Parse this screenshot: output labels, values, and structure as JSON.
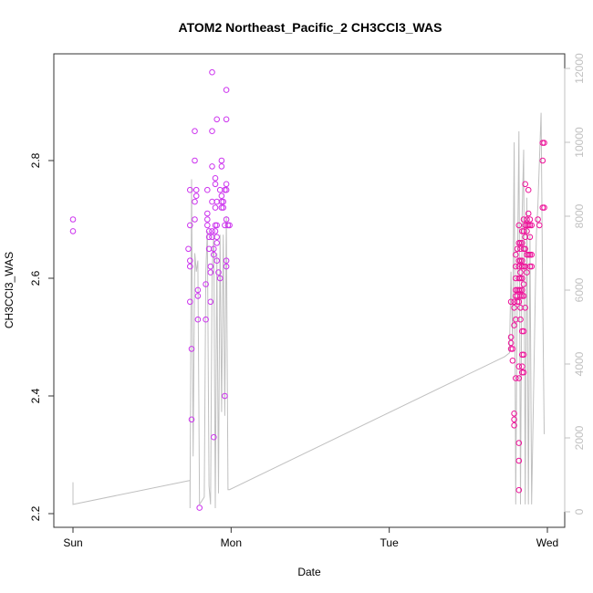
{
  "chart_data": {
    "type": "scatter",
    "title": "ATOM2 Northeast_Pacific_2 CH3CCl3_WAS",
    "xlabel": "Date",
    "ylabel": "CH3CCl3_WAS",
    "xlim": [
      0,
      3.0
    ],
    "ylim": [
      2.2,
      2.96
    ],
    "y2lim": [
      0,
      12000
    ],
    "x_ticks": [
      {
        "value": 0,
        "label": "Sun"
      },
      {
        "value": 1,
        "label": "Mon"
      },
      {
        "value": 2,
        "label": "Tue"
      },
      {
        "value": 3,
        "label": "Wed"
      }
    ],
    "y_ticks": [
      {
        "value": 2.2,
        "label": "2.2"
      },
      {
        "value": 2.4,
        "label": "2.4"
      },
      {
        "value": 2.6,
        "label": "2.6"
      },
      {
        "value": 2.8,
        "label": "2.8"
      }
    ],
    "y2_ticks": [
      {
        "value": 0,
        "label": "0"
      },
      {
        "value": 2000,
        "label": "2000"
      },
      {
        "value": 4000,
        "label": "4000"
      },
      {
        "value": 6000,
        "label": "6000"
      },
      {
        "value": 8000,
        "label": "8000"
      },
      {
        "value": 10000,
        "label": "10000"
      },
      {
        "value": 12000,
        "label": "12000"
      }
    ],
    "grid": false,
    "colors": {
      "points_early": "#cc33ee",
      "points_late": "#ee1199",
      "altitude_line": "#c0c0c0",
      "frame": "#333333"
    },
    "series": [
      {
        "marker": "open-circle",
        "points": [
          [
            0.0,
            2.7
          ],
          [
            0.0,
            2.68
          ],
          [
            0.74,
            2.75
          ],
          [
            0.74,
            2.69
          ],
          [
            0.73,
            2.65
          ],
          [
            0.74,
            2.63
          ],
          [
            0.74,
            2.62
          ],
          [
            0.74,
            2.56
          ],
          [
            0.75,
            2.48
          ],
          [
            0.75,
            2.36
          ],
          [
            0.77,
            2.85
          ],
          [
            0.77,
            2.8
          ],
          [
            0.78,
            2.75
          ],
          [
            0.78,
            2.74
          ],
          [
            0.77,
            2.73
          ],
          [
            0.77,
            2.7
          ],
          [
            0.79,
            2.58
          ],
          [
            0.79,
            2.57
          ],
          [
            0.79,
            2.53
          ],
          [
            0.8,
            2.21
          ],
          [
            0.84,
            2.53
          ],
          [
            0.84,
            2.59
          ],
          [
            0.85,
            2.75
          ],
          [
            0.85,
            2.71
          ],
          [
            0.85,
            2.7
          ],
          [
            0.85,
            2.69
          ],
          [
            0.86,
            2.68
          ],
          [
            0.86,
            2.67
          ],
          [
            0.86,
            2.65
          ],
          [
            0.87,
            2.62
          ],
          [
            0.87,
            2.61
          ],
          [
            0.87,
            2.56
          ],
          [
            0.88,
            2.95
          ],
          [
            0.88,
            2.85
          ],
          [
            0.88,
            2.79
          ],
          [
            0.88,
            2.73
          ],
          [
            0.88,
            2.68
          ],
          [
            0.88,
            2.67
          ],
          [
            0.89,
            2.64
          ],
          [
            0.89,
            2.65
          ],
          [
            0.89,
            2.33
          ],
          [
            0.9,
            2.77
          ],
          [
            0.9,
            2.76
          ],
          [
            0.9,
            2.72
          ],
          [
            0.9,
            2.69
          ],
          [
            0.9,
            2.68
          ],
          [
            0.91,
            2.87
          ],
          [
            0.91,
            2.73
          ],
          [
            0.91,
            2.69
          ],
          [
            0.91,
            2.67
          ],
          [
            0.91,
            2.66
          ],
          [
            0.91,
            2.63
          ],
          [
            0.92,
            2.61
          ],
          [
            0.93,
            2.75
          ],
          [
            0.93,
            2.6
          ],
          [
            0.94,
            2.8
          ],
          [
            0.94,
            2.79
          ],
          [
            0.94,
            2.74
          ],
          [
            0.94,
            2.73
          ],
          [
            0.94,
            2.72
          ],
          [
            0.95,
            2.73
          ],
          [
            0.95,
            2.72
          ],
          [
            0.96,
            2.75
          ],
          [
            0.96,
            2.69
          ],
          [
            0.96,
            2.4
          ],
          [
            0.97,
            2.92
          ],
          [
            0.97,
            2.87
          ],
          [
            0.97,
            2.76
          ],
          [
            0.97,
            2.75
          ],
          [
            0.97,
            2.7
          ],
          [
            0.97,
            2.63
          ],
          [
            0.97,
            2.62
          ],
          [
            0.98,
            2.69
          ],
          [
            0.99,
            2.69
          ],
          [
            2.77,
            2.56
          ],
          [
            2.77,
            2.5
          ],
          [
            2.77,
            2.49
          ],
          [
            2.77,
            2.48
          ],
          [
            2.78,
            2.48
          ],
          [
            2.78,
            2.46
          ],
          [
            2.79,
            2.37
          ],
          [
            2.79,
            2.36
          ],
          [
            2.79,
            2.35
          ],
          [
            2.79,
            2.55
          ],
          [
            2.79,
            2.56
          ],
          [
            2.79,
            2.52
          ],
          [
            2.8,
            2.43
          ],
          [
            2.8,
            2.64
          ],
          [
            2.8,
            2.62
          ],
          [
            2.8,
            2.6
          ],
          [
            2.8,
            2.58
          ],
          [
            2.8,
            2.57
          ],
          [
            2.8,
            2.53
          ],
          [
            2.81,
            2.65
          ],
          [
            2.81,
            2.58
          ],
          [
            2.81,
            2.57
          ],
          [
            2.81,
            2.56
          ],
          [
            2.82,
            2.69
          ],
          [
            2.82,
            2.66
          ],
          [
            2.82,
            2.63
          ],
          [
            2.82,
            2.62
          ],
          [
            2.82,
            2.6
          ],
          [
            2.82,
            2.58
          ],
          [
            2.82,
            2.56
          ],
          [
            2.82,
            2.45
          ],
          [
            2.82,
            2.43
          ],
          [
            2.82,
            2.32
          ],
          [
            2.82,
            2.29
          ],
          [
            2.82,
            2.24
          ],
          [
            2.83,
            2.66
          ],
          [
            2.83,
            2.65
          ],
          [
            2.83,
            2.63
          ],
          [
            2.83,
            2.61
          ],
          [
            2.83,
            2.6
          ],
          [
            2.83,
            2.58
          ],
          [
            2.83,
            2.57
          ],
          [
            2.83,
            2.55
          ],
          [
            2.83,
            2.53
          ],
          [
            2.84,
            2.68
          ],
          [
            2.84,
            2.66
          ],
          [
            2.84,
            2.63
          ],
          [
            2.84,
            2.62
          ],
          [
            2.84,
            2.6
          ],
          [
            2.84,
            2.58
          ],
          [
            2.84,
            2.57
          ],
          [
            2.84,
            2.51
          ],
          [
            2.84,
            2.47
          ],
          [
            2.84,
            2.45
          ],
          [
            2.84,
            2.44
          ],
          [
            2.85,
            2.7
          ],
          [
            2.85,
            2.68
          ],
          [
            2.85,
            2.65
          ],
          [
            2.85,
            2.62
          ],
          [
            2.85,
            2.59
          ],
          [
            2.85,
            2.57
          ],
          [
            2.85,
            2.51
          ],
          [
            2.85,
            2.47
          ],
          [
            2.85,
            2.44
          ],
          [
            2.86,
            2.76
          ],
          [
            2.86,
            2.69
          ],
          [
            2.86,
            2.67
          ],
          [
            2.86,
            2.65
          ],
          [
            2.86,
            2.62
          ],
          [
            2.86,
            2.55
          ],
          [
            2.87,
            2.7
          ],
          [
            2.87,
            2.69
          ],
          [
            2.87,
            2.68
          ],
          [
            2.87,
            2.64
          ],
          [
            2.87,
            2.61
          ],
          [
            2.88,
            2.75
          ],
          [
            2.88,
            2.71
          ],
          [
            2.88,
            2.69
          ],
          [
            2.88,
            2.64
          ],
          [
            2.89,
            2.7
          ],
          [
            2.89,
            2.69
          ],
          [
            2.89,
            2.67
          ],
          [
            2.89,
            2.64
          ],
          [
            2.89,
            2.62
          ],
          [
            2.9,
            2.69
          ],
          [
            2.9,
            2.64
          ],
          [
            2.9,
            2.62
          ],
          [
            2.94,
            2.7
          ],
          [
            2.95,
            2.69
          ],
          [
            2.97,
            2.83
          ],
          [
            2.97,
            2.8
          ],
          [
            2.97,
            2.72
          ],
          [
            2.98,
            2.83
          ],
          [
            2.98,
            2.72
          ]
        ]
      },
      {
        "marker": "line",
        "axis": "right",
        "points": [
          [
            0.0,
            800
          ],
          [
            0.0,
            200
          ],
          [
            0.74,
            850
          ],
          [
            0.74,
            250
          ],
          [
            0.74,
            100
          ],
          [
            0.75,
            9000
          ],
          [
            0.76,
            1500
          ],
          [
            0.77,
            7000
          ],
          [
            0.78,
            6500
          ],
          [
            0.79,
            6800
          ],
          [
            0.8,
            200
          ],
          [
            0.83,
            400
          ],
          [
            0.84,
            6500
          ],
          [
            0.85,
            7600
          ],
          [
            0.86,
            700
          ],
          [
            0.87,
            200
          ],
          [
            0.88,
            6500
          ],
          [
            0.89,
            7500
          ],
          [
            0.9,
            100
          ],
          [
            0.91,
            7000
          ],
          [
            0.92,
            500
          ],
          [
            0.93,
            7500
          ],
          [
            0.94,
            2700
          ],
          [
            0.95,
            7500
          ],
          [
            0.96,
            2600
          ],
          [
            0.97,
            8000
          ],
          [
            0.98,
            600
          ],
          [
            0.99,
            600
          ],
          [
            2.73,
            4200
          ],
          [
            2.76,
            4300
          ],
          [
            2.77,
            6500
          ],
          [
            2.78,
            4500
          ],
          [
            2.79,
            10000
          ],
          [
            2.8,
            200
          ],
          [
            2.81,
            6500
          ],
          [
            2.82,
            10300
          ],
          [
            2.83,
            200
          ],
          [
            2.84,
            8000
          ],
          [
            2.85,
            9800
          ],
          [
            2.86,
            200
          ],
          [
            2.87,
            8500
          ],
          [
            2.88,
            200
          ],
          [
            2.89,
            7500
          ],
          [
            2.9,
            200
          ],
          [
            2.93,
            7500
          ],
          [
            2.94,
            8300
          ],
          [
            2.96,
            10800
          ],
          [
            2.97,
            6000
          ],
          [
            2.98,
            2100
          ]
        ]
      }
    ]
  }
}
